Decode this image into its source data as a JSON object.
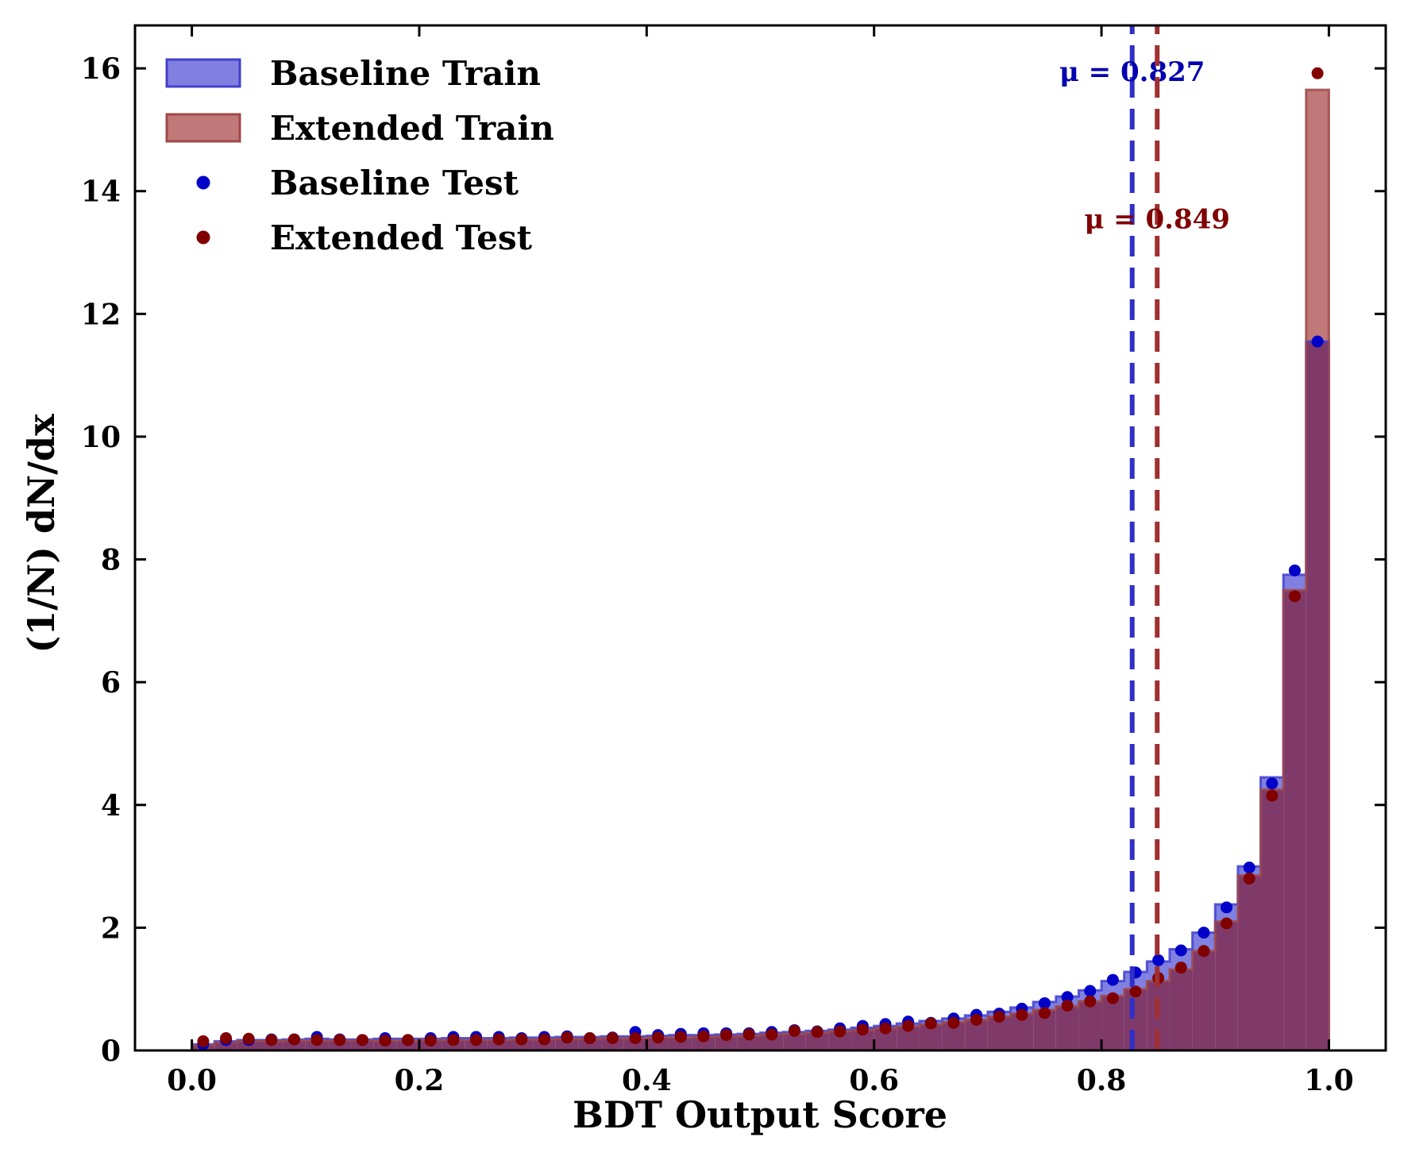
{
  "chart_data": {
    "type": "bar",
    "xlabel": "BDT Output Score",
    "ylabel": "(1/N) dN/dx",
    "xlim": [
      -0.05,
      1.05
    ],
    "ylim": [
      0,
      16.7
    ],
    "xticks": [
      "0.0",
      "0.2",
      "0.4",
      "0.6",
      "0.8",
      "1.0"
    ],
    "yticks": [
      "0",
      "2",
      "4",
      "6",
      "8",
      "10",
      "12",
      "14",
      "16"
    ],
    "legend_position": "top-left",
    "grid": false,
    "bin_edges_start": 0.0,
    "bin_width": 0.02,
    "colors": {
      "baseline_fill": "#8080e0",
      "baseline_edge": "#4040d0",
      "extended_fill": "#c07878",
      "extended_edge": "#a04848",
      "overlap_fill": "#7f3a6a",
      "baseline_point": "#0000c8",
      "extended_point": "#800000",
      "baseline_mean_line": "#3030c8",
      "extended_mean_line": "#a03030",
      "baseline_mean_text": "#0000b0",
      "extended_mean_text": "#800000"
    },
    "series": [
      {
        "name": "Baseline Train",
        "kind": "hist",
        "values": [
          0.1,
          0.15,
          0.17,
          0.17,
          0.18,
          0.19,
          0.18,
          0.18,
          0.19,
          0.19,
          0.19,
          0.2,
          0.2,
          0.2,
          0.21,
          0.21,
          0.22,
          0.22,
          0.23,
          0.23,
          0.24,
          0.25,
          0.25,
          0.26,
          0.27,
          0.29,
          0.3,
          0.32,
          0.34,
          0.37,
          0.4,
          0.44,
          0.48,
          0.52,
          0.57,
          0.63,
          0.7,
          0.79,
          0.88,
          0.98,
          1.13,
          1.28,
          1.45,
          1.65,
          1.92,
          2.38,
          3.0,
          4.45,
          7.75,
          11.55
        ]
      },
      {
        "name": "Extended Train",
        "kind": "hist",
        "values": [
          0.08,
          0.13,
          0.15,
          0.15,
          0.16,
          0.16,
          0.16,
          0.16,
          0.16,
          0.16,
          0.17,
          0.17,
          0.17,
          0.17,
          0.18,
          0.18,
          0.19,
          0.19,
          0.2,
          0.2,
          0.21,
          0.21,
          0.22,
          0.23,
          0.24,
          0.26,
          0.27,
          0.29,
          0.31,
          0.33,
          0.36,
          0.39,
          0.42,
          0.46,
          0.5,
          0.55,
          0.6,
          0.66,
          0.72,
          0.8,
          0.89,
          1.0,
          1.13,
          1.32,
          1.62,
          2.1,
          2.85,
          4.25,
          7.5,
          15.65
        ]
      },
      {
        "name": "Baseline Test",
        "kind": "points",
        "values": [
          0.1,
          0.17,
          0.17,
          0.18,
          0.18,
          0.22,
          0.18,
          0.17,
          0.2,
          0.17,
          0.2,
          0.22,
          0.22,
          0.22,
          0.2,
          0.22,
          0.23,
          0.2,
          0.21,
          0.3,
          0.25,
          0.27,
          0.28,
          0.28,
          0.28,
          0.3,
          0.33,
          0.31,
          0.36,
          0.4,
          0.43,
          0.47,
          0.45,
          0.52,
          0.58,
          0.6,
          0.68,
          0.77,
          0.87,
          0.97,
          1.15,
          1.27,
          1.47,
          1.63,
          1.92,
          2.33,
          2.98,
          4.35,
          7.82,
          11.55
        ]
      },
      {
        "name": "Extended Test",
        "kind": "points",
        "values": [
          0.15,
          0.2,
          0.19,
          0.17,
          0.18,
          0.17,
          0.17,
          0.17,
          0.16,
          0.17,
          0.16,
          0.17,
          0.17,
          0.18,
          0.18,
          0.18,
          0.21,
          0.2,
          0.2,
          0.2,
          0.21,
          0.22,
          0.23,
          0.25,
          0.26,
          0.26,
          0.32,
          0.3,
          0.31,
          0.34,
          0.36,
          0.4,
          0.44,
          0.45,
          0.5,
          0.55,
          0.58,
          0.61,
          0.73,
          0.8,
          0.85,
          0.96,
          1.18,
          1.35,
          1.62,
          2.07,
          2.8,
          4.15,
          7.4,
          15.92
        ]
      }
    ],
    "annotations": [
      {
        "series": "Baseline Train",
        "x": 0.827,
        "label": "μ = 0.827",
        "label_y": 15.95
      },
      {
        "series": "Extended Train",
        "x": 0.849,
        "label": "μ = 0.849",
        "label_y": 13.55
      }
    ]
  }
}
